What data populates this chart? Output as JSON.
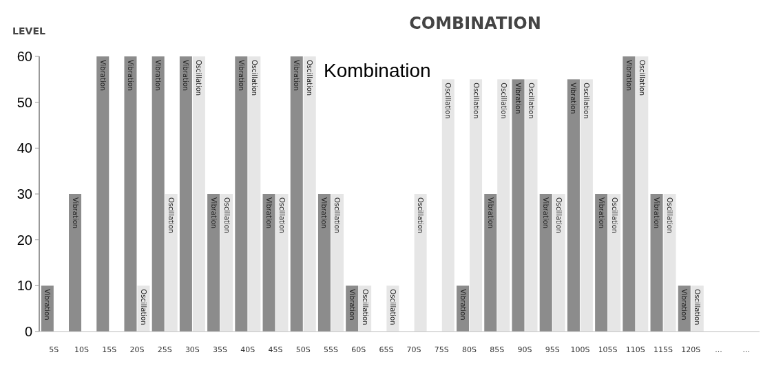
{
  "chart_data": {
    "type": "bar",
    "title": "COMBINATION",
    "ylabel": "LEVEL",
    "annotations": [
      "Kombination"
    ],
    "categories": [
      "5S",
      "10S",
      "15S",
      "20S",
      "25S",
      "30S",
      "35S",
      "40S",
      "45S",
      "50S",
      "55S",
      "60S",
      "65S",
      "70S",
      "75S",
      "80S",
      "85S",
      "90S",
      "95S",
      "100S",
      "105S",
      "110S",
      "115S",
      "120S",
      "...",
      "..."
    ],
    "series": [
      {
        "name": "Vibration",
        "color": "#8c8c8c",
        "values": [
          10,
          30,
          60,
          60,
          60,
          60,
          30,
          60,
          30,
          60,
          30,
          10,
          null,
          null,
          null,
          10,
          30,
          55,
          30,
          55,
          30,
          60,
          30,
          10,
          null,
          null
        ]
      },
      {
        "name": "Oscillation",
        "color": "#e6e6e6",
        "values": [
          null,
          null,
          null,
          10,
          30,
          60,
          30,
          60,
          30,
          60,
          30,
          10,
          10,
          30,
          55,
          55,
          55,
          55,
          30,
          55,
          30,
          60,
          30,
          10,
          null,
          null
        ]
      }
    ],
    "ylim": [
      0,
      60
    ],
    "yticks": [
      0,
      10,
      20,
      30,
      40,
      50,
      60
    ],
    "grid": false
  }
}
